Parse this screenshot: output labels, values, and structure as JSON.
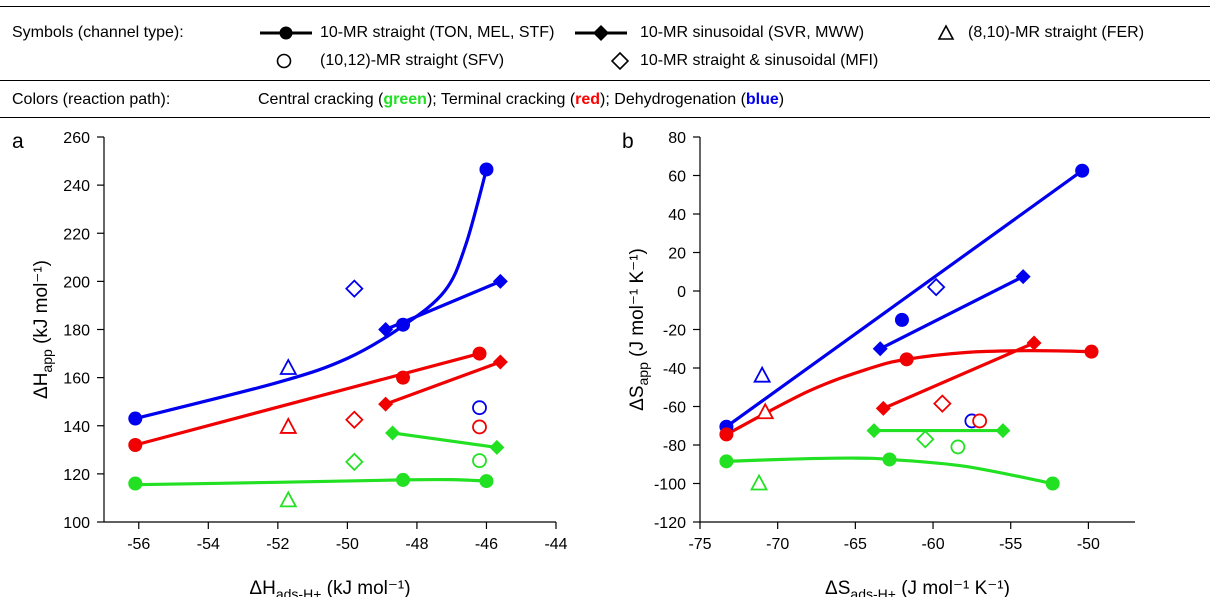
{
  "legend": {
    "symbols_label": "Symbols (channel type):",
    "items": [
      {
        "marker": "filled-circle",
        "label": "10-MR straight (TON, MEL, STF)"
      },
      {
        "marker": "filled-diamond",
        "label": "10-MR sinusoidal (SVR, MWW)"
      },
      {
        "marker": "open-triangle",
        "label": "(8,10)-MR straight (FER)"
      },
      {
        "marker": "open-circle",
        "label": "(10,12)-MR straight (SFV)"
      },
      {
        "marker": "open-diamond",
        "label": "10-MR straight & sinusoidal (MFI)"
      }
    ],
    "colors_label": "Colors (reaction path):",
    "colors_text": {
      "part1": "Central cracking (",
      "green": "green",
      "part2": "); Terminal cracking (",
      "red": "red",
      "part3": "); Dehydrogenation (",
      "blue": "blue",
      "part4": ")"
    }
  },
  "colors": {
    "green": "#22e022",
    "red": "#f00000",
    "blue": "#0000ee"
  },
  "chart_data": [
    {
      "type": "scatter",
      "panel_label": "a",
      "ylabel": "ΔH_app (kJ mol⁻¹)",
      "xlabel": "ΔH_ads-H+ (kJ mol⁻¹)",
      "xlim": [
        -57,
        -44
      ],
      "ylim": [
        100,
        260
      ],
      "xticks": [
        -56,
        -54,
        -52,
        -50,
        -48,
        -46,
        -44
      ],
      "yticks": [
        100,
        120,
        140,
        160,
        180,
        200,
        220,
        240,
        260
      ],
      "series": [
        {
          "color": "blue",
          "marker": "filled-circle",
          "points": [
            [
              -56.1,
              143
            ],
            [
              -48.4,
              182
            ],
            [
              -46.0,
              246.5
            ]
          ],
          "fit": "curve",
          "fit_points": [
            [
              -56.1,
              143
            ],
            [
              -52,
              158
            ],
            [
              -50,
              168
            ],
            [
              -48.4,
              181.5
            ],
            [
              -47.2,
              196
            ],
            [
              -46.6,
              215
            ],
            [
              -46.0,
              246.5
            ]
          ]
        },
        {
          "color": "blue",
          "marker": "filled-diamond",
          "points": [
            [
              -48.9,
              180
            ],
            [
              -45.6,
              200
            ]
          ],
          "fit": "line"
        },
        {
          "color": "blue",
          "marker": "open-triangle",
          "points": [
            [
              -51.7,
              164
            ]
          ]
        },
        {
          "color": "blue",
          "marker": "open-diamond",
          "points": [
            [
              -49.8,
              197
            ]
          ]
        },
        {
          "color": "blue",
          "marker": "open-circle",
          "points": [
            [
              -46.2,
              147.5
            ]
          ]
        },
        {
          "color": "red",
          "marker": "filled-circle",
          "points": [
            [
              -56.1,
              132
            ],
            [
              -48.4,
              160
            ],
            [
              -46.2,
              170
            ]
          ],
          "fit": "line",
          "fit_points": [
            [
              -56.1,
              132
            ],
            [
              -46.2,
              170
            ]
          ]
        },
        {
          "color": "red",
          "marker": "filled-diamond",
          "points": [
            [
              -48.9,
              149
            ],
            [
              -45.6,
              166.5
            ]
          ],
          "fit": "line"
        },
        {
          "color": "red",
          "marker": "open-triangle",
          "points": [
            [
              -51.7,
              139.5
            ]
          ]
        },
        {
          "color": "red",
          "marker": "open-diamond",
          "points": [
            [
              -49.8,
              142.5
            ]
          ]
        },
        {
          "color": "red",
          "marker": "open-circle",
          "points": [
            [
              -46.2,
              139.5
            ]
          ]
        },
        {
          "color": "green",
          "marker": "filled-circle",
          "points": [
            [
              -56.1,
              116
            ],
            [
              -48.4,
              117.5
            ],
            [
              -46.0,
              117
            ]
          ],
          "fit": "curve",
          "fit_points": [
            [
              -56.1,
              115.5
            ],
            [
              -52,
              116.5
            ],
            [
              -48.4,
              117.5
            ],
            [
              -47,
              117.6
            ],
            [
              -46.0,
              117
            ]
          ]
        },
        {
          "color": "green",
          "marker": "filled-diamond",
          "points": [
            [
              -48.7,
              137
            ],
            [
              -45.7,
              131
            ]
          ],
          "fit": "line"
        },
        {
          "color": "green",
          "marker": "open-triangle",
          "points": [
            [
              -51.7,
              109
            ]
          ]
        },
        {
          "color": "green",
          "marker": "open-diamond",
          "points": [
            [
              -49.8,
              125
            ]
          ]
        },
        {
          "color": "green",
          "marker": "open-circle",
          "points": [
            [
              -46.2,
              125.5
            ]
          ]
        }
      ]
    },
    {
      "type": "scatter",
      "panel_label": "b",
      "ylabel": "ΔS_app (J mol⁻¹ K⁻¹)",
      "xlabel": "ΔS_ads-H+ (J mol⁻¹ K⁻¹)",
      "xlim": [
        -75,
        -47
      ],
      "ylim": [
        -120,
        80
      ],
      "xticks": [
        -75,
        -70,
        -65,
        -60,
        -55,
        -50
      ],
      "yticks": [
        -120,
        -100,
        -80,
        -60,
        -40,
        -20,
        0,
        20,
        40,
        60,
        80
      ],
      "series": [
        {
          "color": "blue",
          "marker": "filled-circle",
          "points": [
            [
              -73.3,
              -70.5
            ],
            [
              -62.0,
              -15
            ],
            [
              -50.4,
              62.5
            ]
          ],
          "fit": "line",
          "fit_points": [
            [
              -73.3,
              -70.5
            ],
            [
              -50.4,
              62.5
            ]
          ]
        },
        {
          "color": "blue",
          "marker": "filled-diamond",
          "points": [
            [
              -63.4,
              -30
            ],
            [
              -54.2,
              7.5
            ]
          ],
          "fit": "line"
        },
        {
          "color": "blue",
          "marker": "open-triangle",
          "points": [
            [
              -71.0,
              -44
            ]
          ]
        },
        {
          "color": "blue",
          "marker": "open-diamond",
          "points": [
            [
              -59.8,
              2
            ]
          ]
        },
        {
          "color": "blue",
          "marker": "open-circle",
          "points": [
            [
              -57.5,
              -67.5
            ]
          ]
        },
        {
          "color": "red",
          "marker": "filled-circle",
          "points": [
            [
              -73.3,
              -74.5
            ],
            [
              -61.7,
              -35.5
            ],
            [
              -49.8,
              -31.5
            ]
          ],
          "fit": "curve",
          "fit_points": [
            [
              -73.3,
              -74.5
            ],
            [
              -68,
              -52
            ],
            [
              -64,
              -40
            ],
            [
              -61.7,
              -35.5
            ],
            [
              -58,
              -32
            ],
            [
              -54,
              -31
            ],
            [
              -49.8,
              -31.5
            ]
          ]
        },
        {
          "color": "red",
          "marker": "filled-diamond",
          "points": [
            [
              -63.2,
              -61
            ],
            [
              -53.5,
              -27
            ]
          ],
          "fit": "line"
        },
        {
          "color": "red",
          "marker": "open-triangle",
          "points": [
            [
              -70.8,
              -63
            ]
          ]
        },
        {
          "color": "red",
          "marker": "open-diamond",
          "points": [
            [
              -59.4,
              -58.5
            ]
          ]
        },
        {
          "color": "red",
          "marker": "open-circle",
          "points": [
            [
              -57.0,
              -67.5
            ]
          ]
        },
        {
          "color": "green",
          "marker": "filled-circle",
          "points": [
            [
              -73.3,
              -88.5
            ],
            [
              -62.8,
              -87.5
            ],
            [
              -52.3,
              -100
            ]
          ],
          "fit": "curve",
          "fit_points": [
            [
              -73.3,
              -88.5
            ],
            [
              -69,
              -87.3
            ],
            [
              -65,
              -86.8
            ],
            [
              -62.8,
              -87.5
            ],
            [
              -58,
              -91
            ],
            [
              -52.3,
              -100
            ]
          ]
        },
        {
          "color": "green",
          "marker": "filled-diamond",
          "points": [
            [
              -63.8,
              -72.5
            ],
            [
              -55.5,
              -72.5
            ]
          ],
          "fit": "line"
        },
        {
          "color": "green",
          "marker": "open-triangle",
          "points": [
            [
              -71.2,
              -100
            ]
          ]
        },
        {
          "color": "green",
          "marker": "open-diamond",
          "points": [
            [
              -60.5,
              -77
            ]
          ]
        },
        {
          "color": "green",
          "marker": "open-circle",
          "points": [
            [
              -58.4,
              -81
            ]
          ]
        }
      ]
    }
  ]
}
